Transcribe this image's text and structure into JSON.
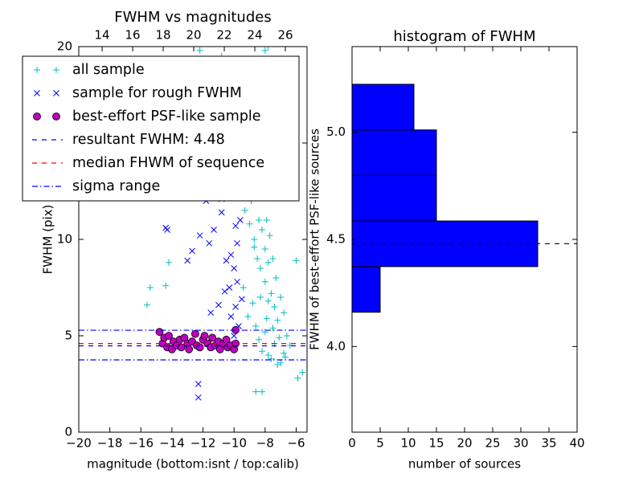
{
  "chart_data": [
    {
      "type": "scatter",
      "title": "FWHM vs magnitudes",
      "xlabel": "magnitude (bottom:isnt / top:calib)",
      "ylabel": "FWHM (pix)",
      "xlim": [
        -20,
        -5.3
      ],
      "xticks": [
        {
          "value": -20,
          "label": "−20"
        },
        {
          "value": -18,
          "label": "−18"
        },
        {
          "value": -16,
          "label": "−16"
        },
        {
          "value": -14,
          "label": "−14"
        },
        {
          "value": -12,
          "label": "−12"
        },
        {
          "value": -10,
          "label": "−10"
        },
        {
          "value": -8,
          "label": "−8"
        },
        {
          "value": -6,
          "label": "−6"
        }
      ],
      "x2lim": [
        12.47,
        27.42
      ],
      "x2ticks": [
        14,
        16,
        18,
        20,
        22,
        24,
        26
      ],
      "ylim": [
        0,
        20
      ],
      "yticks": [
        0,
        5,
        10,
        15,
        20
      ],
      "legend": "upper left",
      "series": [
        {
          "name": "all sample",
          "color": "#00bfbf",
          "marker": "+",
          "x": [
            -9.5,
            -9.3,
            -9.2,
            -9,
            -8.9,
            -8.8,
            -8.7,
            -8.6,
            -8.5,
            -8.5,
            -8.4,
            -8.3,
            -8.3,
            -8.2,
            -8.1,
            -8,
            -8,
            -7.9,
            -7.8,
            -7.8,
            -7.7,
            -7.6,
            -7.5,
            -7.4,
            -7.3,
            -7.2,
            -7,
            -6.8,
            -6.6,
            -6.4,
            -9.4,
            -9.1,
            -8.8,
            -8.6,
            -8.4,
            -8.2,
            -8,
            -7.8,
            -7.6,
            -7.4,
            -7.2,
            -7,
            -6.8,
            -9,
            -8.7,
            -8.3,
            -7.9,
            -7.5,
            -7.1,
            -6.7,
            -9.6,
            -9.7,
            -9.2,
            -8.9,
            -15.6,
            -15.4,
            -14.4,
            -14.2,
            -12.2,
            -10.8,
            -8,
            -7.8,
            -6,
            -5.6,
            -5.9,
            -8.6,
            -8.2
          ],
          "values": [
            13,
            11.5,
            14,
            15.5,
            12,
            16.8,
            10,
            17.5,
            9,
            14.5,
            11,
            13,
            8.5,
            10.5,
            12.5,
            7.8,
            9.5,
            11,
            6.8,
            8.8,
            10.2,
            7.2,
            9,
            6.5,
            8,
            5.8,
            7,
            6.2,
            5,
            4.5,
            7.5,
            6,
            6.7,
            5.5,
            4.8,
            4.2,
            5.2,
            4,
            3.8,
            4.6,
            3.5,
            3.6,
            4.1,
            10.8,
            9.6,
            7,
            5.9,
            5.4,
            4.9,
            3.9,
            12.5,
            15,
            17,
            18.5,
            6.6,
            7.5,
            7.6,
            8.8,
            19.8,
            19.5,
            19.8,
            20,
            8.9,
            3.1,
            2.8,
            2.1,
            2.1
          ]
        },
        {
          "name": "sample for rough FWHM",
          "color": "#0000ff",
          "marker": "x",
          "x": [
            -14.4,
            -14.3,
            -12.7,
            -12.2,
            -11.6,
            -11.3,
            -12.3,
            -12.3,
            -10.8,
            -10.5,
            -10.2,
            -10,
            -9.8,
            -10.3,
            -10.6,
            -11,
            -9.9,
            -10.2,
            -9.7,
            -9.8,
            -10,
            -9.5,
            -11.5,
            -10.8,
            -11.8,
            -9.6,
            -13,
            -9.9
          ],
          "values": [
            10.6,
            10.5,
            9.4,
            10.2,
            9.8,
            10.5,
            2.5,
            1.8,
            12.1,
            8.9,
            9.2,
            8.5,
            9.8,
            7.5,
            7.3,
            6.6,
            6.5,
            6,
            5.5,
            7.8,
            5,
            6.9,
            6.2,
            11.4,
            12,
            11,
            8.9,
            10.7
          ]
        },
        {
          "name": "best-effort PSF-like sample",
          "color": "#bf00bf",
          "marker": "o",
          "x": [
            -14.8,
            -14.6,
            -14.5,
            -14.3,
            -14.2,
            -14,
            -13.9,
            -13.7,
            -13.5,
            -13.4,
            -13.2,
            -13,
            -12.9,
            -12.7,
            -12.5,
            -12.4,
            -12.2,
            -12,
            -11.9,
            -11.7,
            -11.5,
            -11.4,
            -11.2,
            -11,
            -10.9,
            -10.7,
            -10.5,
            -10.4,
            -10.2,
            -10,
            -9.9,
            -9.9
          ],
          "values": [
            5.2,
            4.6,
            4.9,
            4.4,
            5,
            4.3,
            4.7,
            4.5,
            4.8,
            4.4,
            4.9,
            4.6,
            4.3,
            4.7,
            5.1,
            4.5,
            4.4,
            4.8,
            5,
            4.6,
            4.4,
            4.9,
            4.5,
            4.7,
            4.3,
            4.6,
            4.8,
            4.4,
            4.5,
            4.3,
            5.3,
            4.6
          ]
        }
      ],
      "hlines": [
        {
          "name": "resultant FWHM: 4.48",
          "color": "#0000ff",
          "linestyle": "dashed",
          "values": [
            4.48
          ]
        },
        {
          "name": "median FHWM of sequence",
          "color": "#ff0000",
          "linestyle": "dashed",
          "values": [
            4.6
          ]
        },
        {
          "name": "sigma range",
          "color": "#0000ff",
          "linestyle": "dashdot",
          "values": [
            5.29,
            3.75
          ]
        }
      ]
    },
    {
      "type": "histogram",
      "orientation": "horizontal",
      "title": "histogram of FWHM",
      "xlabel": "number of sources",
      "ylabel": "FWHM of best-effort PSF-like sources",
      "bins": [
        4.16,
        4.373,
        4.586,
        4.799,
        5.011,
        5.224
      ],
      "values": [
        5,
        33,
        15,
        15,
        11
      ],
      "color": "#0000ff",
      "xlim": [
        0,
        40
      ],
      "xticks": [
        0,
        5,
        10,
        15,
        20,
        25,
        30,
        35,
        40
      ],
      "ylim": [
        3.6,
        5.4
      ],
      "yticks": [
        {
          "value": 4,
          "label": "4.0"
        },
        {
          "value": 4.5,
          "label": "4.5"
        },
        {
          "value": 5,
          "label": "5.0"
        }
      ],
      "hlines": [
        {
          "color": "#000000",
          "linestyle": "dashed",
          "values": [
            4.48
          ]
        }
      ]
    }
  ]
}
